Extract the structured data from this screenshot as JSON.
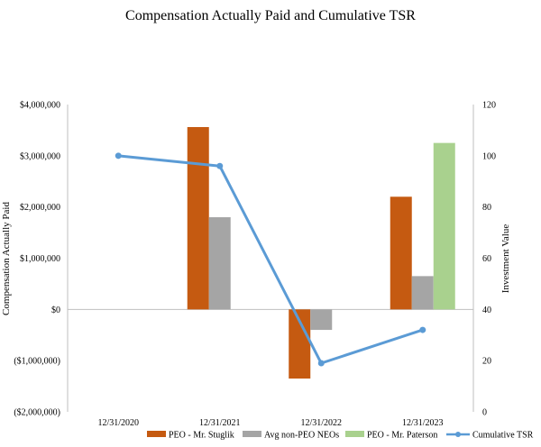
{
  "chart_data": {
    "type": "bar",
    "title": "Compensation Actually Paid and Cumulative TSR",
    "ylabel_left": "Compensation Actually Paid",
    "ylabel_right": "Investment Value",
    "categories": [
      "12/31/2020",
      "12/31/2021",
      "12/31/2022",
      "12/31/2023"
    ],
    "ylim_left": [
      -2000000,
      4000000
    ],
    "ylim_right": [
      0,
      120
    ],
    "left_ticks": [
      "$4,000,000",
      "$3,000,000",
      "$2,000,000",
      "$1,000,000",
      "$0",
      "($1,000,000)",
      "($2,000,000)"
    ],
    "left_tick_values": [
      4000000,
      3000000,
      2000000,
      1000000,
      0,
      -1000000,
      -2000000
    ],
    "right_ticks": [
      "120",
      "100",
      "80",
      "60",
      "40",
      "20",
      "0"
    ],
    "right_tick_values": [
      120,
      100,
      80,
      60,
      40,
      20,
      0
    ],
    "series": [
      {
        "name": "PEO - Mr. Stuglik",
        "kind": "bar",
        "color": "#C55A11",
        "values": [
          null,
          3560000,
          -1350000,
          2200000
        ]
      },
      {
        "name": "Avg non-PEO NEOs",
        "kind": "bar",
        "color": "#A5A5A5",
        "values": [
          null,
          1800000,
          -400000,
          650000
        ]
      },
      {
        "name": "PEO - Mr. Paterson",
        "kind": "bar",
        "color": "#A9D18E",
        "values": [
          null,
          null,
          null,
          3250000
        ]
      },
      {
        "name": "Cumulative TSR",
        "kind": "line",
        "axis": "right",
        "color": "#5B9BD5",
        "values": [
          100,
          96,
          19,
          32
        ]
      }
    ]
  }
}
